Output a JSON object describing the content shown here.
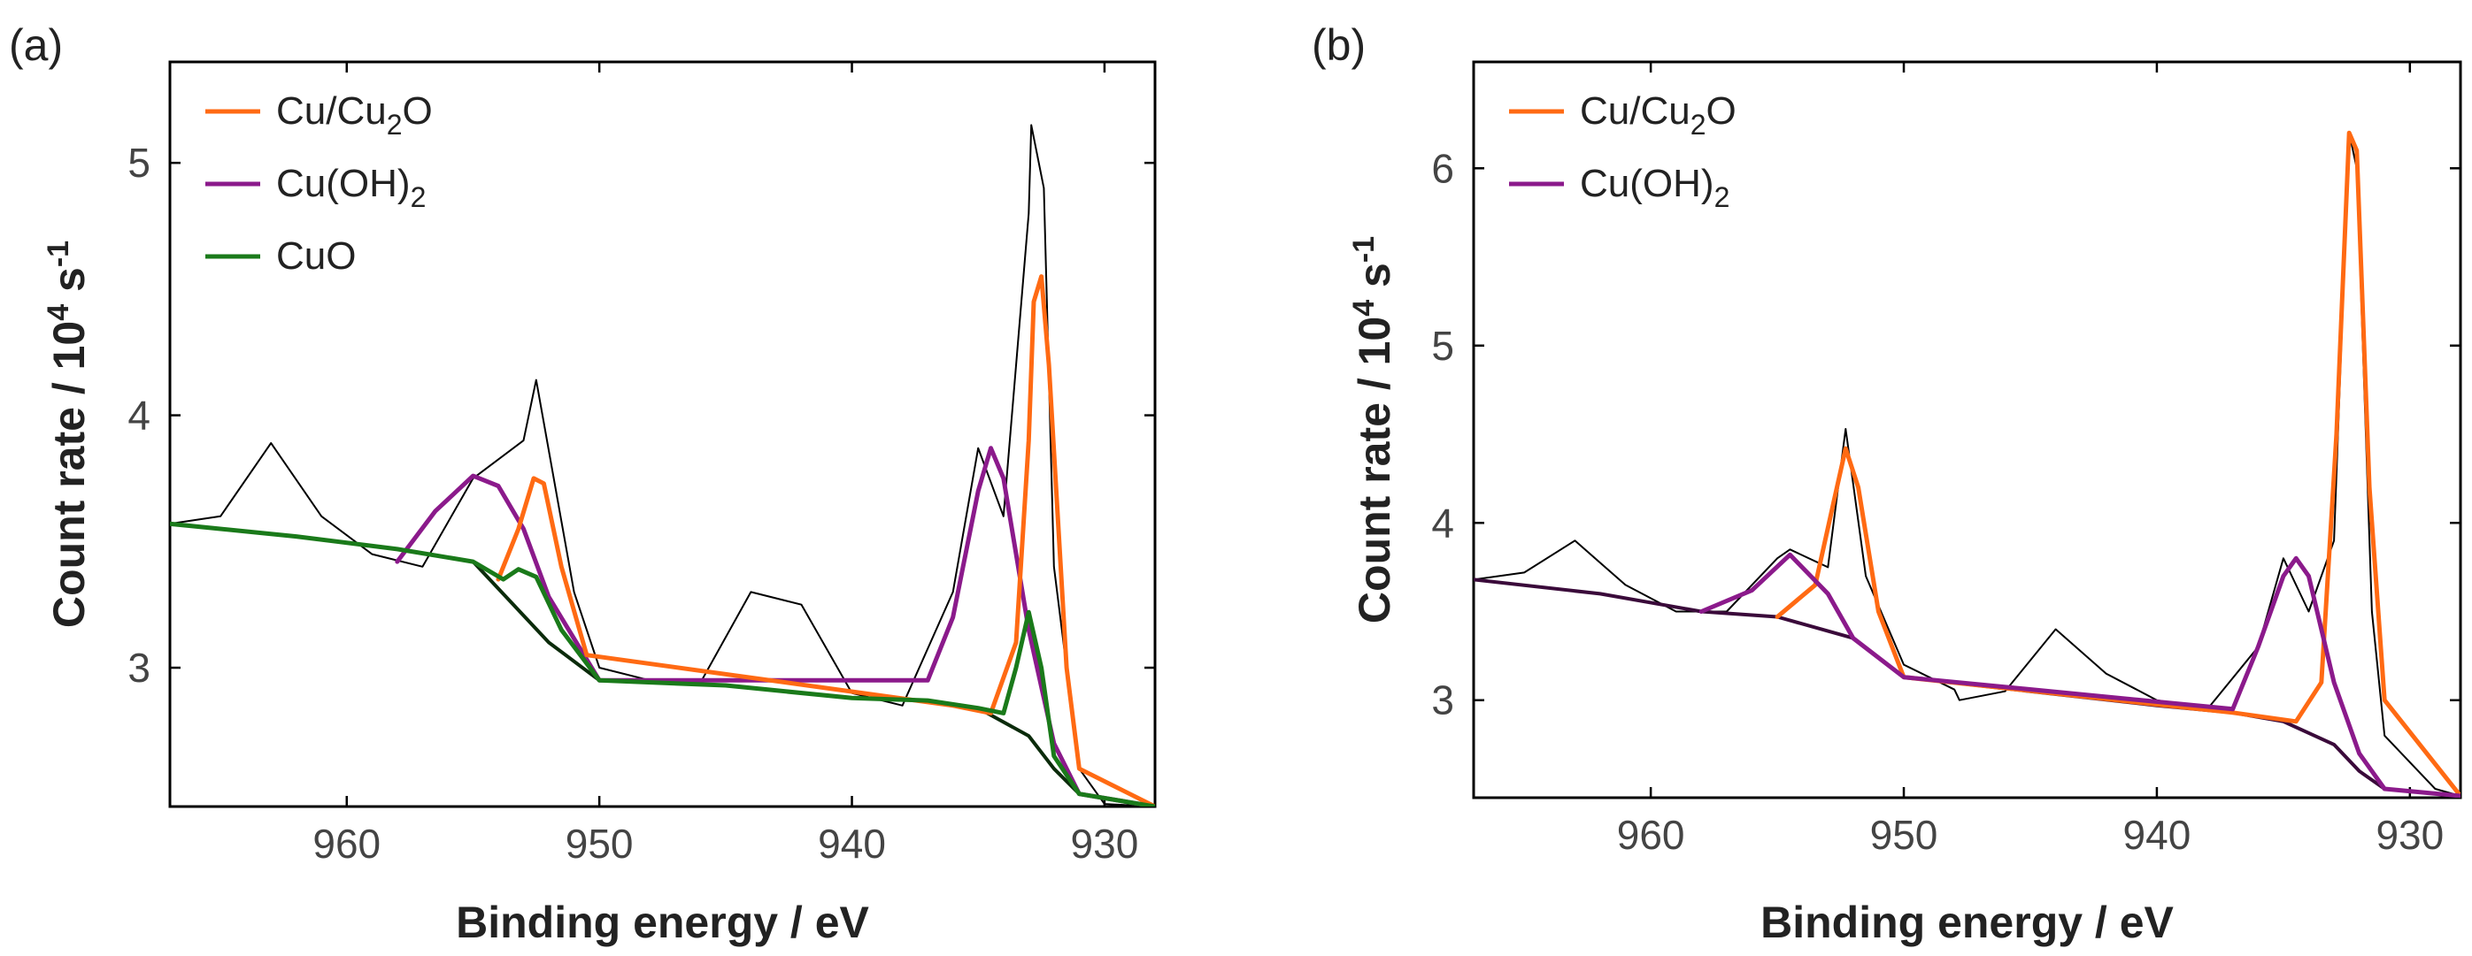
{
  "chart_data": [
    {
      "panel": "(a)",
      "type": "line",
      "xlabel": "Binding energy / eV",
      "ylabel": "Count rate / 10",
      "ylabel_sup": "4",
      "ylabel_unit": " s",
      "ylabel_unit_sup": "-1",
      "xlim": [
        967,
        928
      ],
      "ylim": [
        2.45,
        5.4
      ],
      "xticks": [
        960,
        950,
        940,
        930
      ],
      "yticks": [
        3,
        4,
        5
      ],
      "legend": [
        {
          "name": "Cu/Cu",
          "sub": "2",
          "tail": "O",
          "color": "#ff6a13"
        },
        {
          "name": "Cu(OH)",
          "sub": "2",
          "tail": "",
          "color": "#8b1a8b"
        },
        {
          "name": "CuO",
          "sub": "",
          "tail": "",
          "color": "#1a7a1a"
        }
      ],
      "measured": {
        "color": "#000000",
        "x": [
          967,
          965,
          963,
          961,
          959,
          957,
          955,
          953,
          952.5,
          951,
          950,
          948,
          946,
          944,
          942,
          940,
          938,
          936,
          935,
          934,
          933,
          932.9,
          932.4,
          932,
          931,
          930,
          928
        ],
        "y": [
          3.57,
          3.6,
          3.89,
          3.6,
          3.45,
          3.4,
          3.75,
          3.9,
          4.14,
          3.3,
          3.0,
          2.95,
          2.94,
          3.3,
          3.25,
          2.9,
          2.85,
          3.3,
          3.87,
          3.6,
          4.8,
          5.15,
          4.9,
          3.4,
          2.6,
          2.46,
          2.45
        ]
      },
      "series": [
        {
          "name": "background",
          "color": "#0b2b0b",
          "x": [
            967,
            962,
            958,
            955,
            952,
            950,
            945,
            940,
            937,
            935,
            933,
            932,
            931,
            928
          ],
          "y": [
            3.57,
            3.52,
            3.47,
            3.42,
            3.1,
            2.95,
            2.93,
            2.88,
            2.87,
            2.84,
            2.73,
            2.6,
            2.5,
            2.45
          ]
        },
        {
          "name": "Cu(OH)2",
          "color": "#8b1a8b",
          "x": [
            958,
            956.5,
            955,
            954,
            953,
            952,
            950,
            937,
            936,
            935,
            934.5,
            934,
            933,
            932,
            931,
            928
          ],
          "y": [
            3.42,
            3.62,
            3.76,
            3.72,
            3.55,
            3.28,
            2.95,
            2.95,
            3.2,
            3.7,
            3.87,
            3.75,
            3.15,
            2.7,
            2.5,
            2.45
          ]
        },
        {
          "name": "Cu/Cu2O",
          "color": "#ff6a13",
          "x": [
            954,
            953.2,
            952.6,
            952.2,
            951.5,
            950.5,
            936,
            934.5,
            933.5,
            933,
            932.8,
            932.5,
            932.2,
            931.5,
            931,
            928
          ],
          "y": [
            3.35,
            3.55,
            3.75,
            3.73,
            3.4,
            3.05,
            2.85,
            2.82,
            3.1,
            3.9,
            4.45,
            4.55,
            4.2,
            3.0,
            2.6,
            2.45
          ]
        },
        {
          "name": "CuO",
          "color": "#1a7a1a",
          "x": [
            967,
            962,
            958,
            955,
            953.8,
            953.2,
            952.5,
            951.5,
            950,
            945,
            940,
            937,
            935,
            934,
            933.5,
            933,
            932.5,
            932,
            931,
            928
          ],
          "y": [
            3.57,
            3.52,
            3.47,
            3.42,
            3.35,
            3.39,
            3.36,
            3.15,
            2.95,
            2.93,
            2.88,
            2.87,
            2.84,
            2.82,
            3.0,
            3.22,
            3.0,
            2.65,
            2.5,
            2.45
          ]
        }
      ]
    },
    {
      "panel": "(b)",
      "type": "line",
      "xlabel": "Binding energy / eV",
      "ylabel": "Count rate / 10",
      "ylabel_sup": "4",
      "ylabel_unit": " s",
      "ylabel_unit_sup": "-1",
      "xlim": [
        967,
        928
      ],
      "ylim": [
        2.45,
        6.6
      ],
      "xticks": [
        960,
        950,
        940,
        930
      ],
      "yticks": [
        3,
        4,
        5,
        6
      ],
      "legend": [
        {
          "name": "Cu/Cu",
          "sub": "2",
          "tail": "O",
          "color": "#ff6a13"
        },
        {
          "name": "Cu(OH)",
          "sub": "2",
          "tail": "",
          "color": "#8b1a8b"
        }
      ],
      "measured": {
        "color": "#000000",
        "x": [
          967,
          965,
          963,
          961,
          959,
          957,
          955,
          954.5,
          953,
          952.3,
          951.5,
          950,
          948,
          947.8,
          946,
          944,
          942,
          940,
          938,
          936,
          935,
          934,
          933,
          932.4,
          932.1,
          931.5,
          931,
          929,
          928
        ],
        "y": [
          3.68,
          3.72,
          3.9,
          3.65,
          3.5,
          3.5,
          3.8,
          3.85,
          3.75,
          4.53,
          3.7,
          3.2,
          3.06,
          3.0,
          3.05,
          3.4,
          3.15,
          3.0,
          2.95,
          3.3,
          3.8,
          3.5,
          3.9,
          6.2,
          6.0,
          3.5,
          2.8,
          2.5,
          2.46
        ]
      },
      "series": [
        {
          "name": "background",
          "color": "#3a0a3a",
          "x": [
            967,
            962,
            958,
            955,
            952,
            950,
            945,
            940,
            937,
            935,
            933,
            932,
            931,
            928
          ],
          "y": [
            3.68,
            3.6,
            3.5,
            3.47,
            3.35,
            3.13,
            3.05,
            2.97,
            2.93,
            2.88,
            2.75,
            2.6,
            2.5,
            2.46
          ]
        },
        {
          "name": "Cu/Cu2O",
          "color": "#ff6a13",
          "x": [
            955,
            953.5,
            952.8,
            952.3,
            951.8,
            951,
            950,
            937,
            934.5,
            933.5,
            932.9,
            932.4,
            932.1,
            931.6,
            931,
            928
          ],
          "y": [
            3.47,
            3.65,
            4.1,
            4.42,
            4.2,
            3.5,
            3.13,
            2.93,
            2.88,
            3.1,
            4.5,
            6.2,
            6.1,
            4.2,
            3.0,
            2.46
          ]
        },
        {
          "name": "Cu(OH)2",
          "color": "#8b1a8b",
          "x": [
            958,
            956,
            954.5,
            953,
            952,
            950,
            937,
            936,
            935,
            934.5,
            934,
            933,
            932,
            931,
            928
          ],
          "y": [
            3.5,
            3.62,
            3.82,
            3.6,
            3.35,
            3.13,
            2.95,
            3.3,
            3.7,
            3.8,
            3.7,
            3.1,
            2.7,
            2.5,
            2.46
          ]
        }
      ]
    }
  ]
}
